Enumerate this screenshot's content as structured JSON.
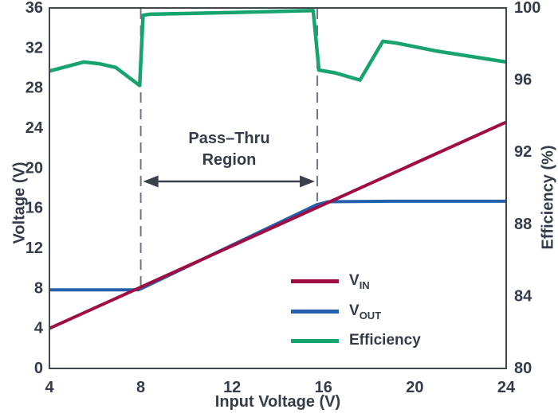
{
  "chart_data": {
    "type": "line",
    "title": "",
    "x_axis": {
      "label": "Input Voltage (V)",
      "min": 4,
      "max": 24,
      "ticks": [
        4,
        8,
        12,
        16,
        20,
        24
      ]
    },
    "y_left": {
      "label": "Voltage (V)",
      "min": 0,
      "max": 36,
      "ticks": [
        0,
        4,
        8,
        12,
        16,
        20,
        24,
        28,
        32,
        36
      ]
    },
    "y_right": {
      "label": "Efficiency (%)",
      "min": 80,
      "max": 100,
      "ticks": [
        80,
        84,
        88,
        92,
        96,
        100
      ]
    },
    "grid": "off",
    "series": [
      {
        "name": "VIN",
        "axis": "left",
        "color": "#9F0D43",
        "points": [
          [
            4,
            4.0
          ],
          [
            24,
            24.6
          ]
        ]
      },
      {
        "name": "VOUT",
        "axis": "left",
        "color": "#2461AD",
        "points": [
          [
            4,
            7.85
          ],
          [
            7.9,
            7.85
          ],
          [
            8.05,
            8.0
          ],
          [
            15.7,
            16.35
          ],
          [
            16.2,
            16.65
          ],
          [
            19,
            16.7
          ],
          [
            24,
            16.7
          ]
        ]
      },
      {
        "name": "Efficiency",
        "axis": "right",
        "color": "#17A36E",
        "points": [
          [
            4,
            96.5
          ],
          [
            5.5,
            97.0
          ],
          [
            6.2,
            96.9
          ],
          [
            6.9,
            96.7
          ],
          [
            7.95,
            95.7
          ],
          [
            8.1,
            99.6
          ],
          [
            8.4,
            99.65
          ],
          [
            12,
            99.75
          ],
          [
            15.4,
            99.85
          ],
          [
            15.55,
            99.85
          ],
          [
            15.8,
            96.55
          ],
          [
            16.5,
            96.4
          ],
          [
            17.6,
            96.0
          ],
          [
            18.6,
            98.15
          ],
          [
            19.2,
            98.05
          ],
          [
            19.8,
            97.9
          ],
          [
            21,
            97.6
          ],
          [
            24,
            97.0
          ]
        ]
      }
    ],
    "annotation": {
      "label_line1": "Pass–Thru",
      "label_line2": "Region",
      "region_x": [
        8,
        15.73
      ],
      "dash_bottom_values": [
        7.7,
        16.69
      ]
    },
    "legend": {
      "items": [
        {
          "label_main": "V",
          "label_sub": "IN",
          "series": "VIN"
        },
        {
          "label_main": "V",
          "label_sub": "OUT",
          "series": "VOUT"
        },
        {
          "label_main": "Efficiency",
          "label_sub": "",
          "series": "Efficiency"
        }
      ]
    },
    "colors": {
      "text": "#353B48",
      "border": "#41464F",
      "dash_line": "#70757D",
      "arrow": "#3A404A",
      "background": "#FFFFFF"
    }
  }
}
